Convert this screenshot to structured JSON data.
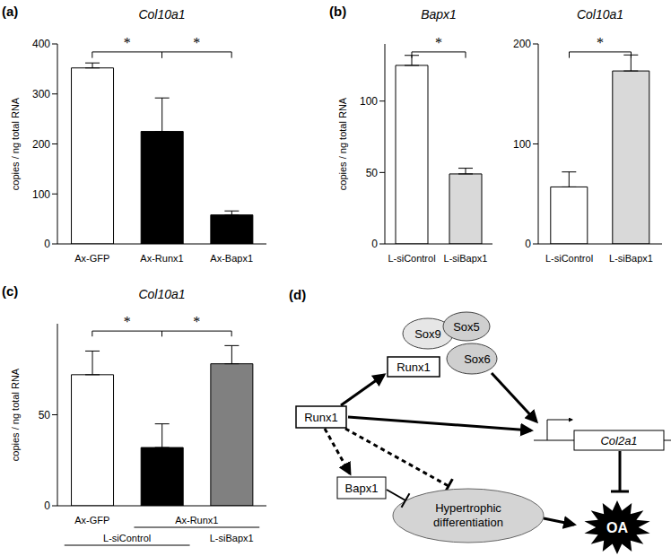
{
  "chart_data": [
    {
      "panel": "(a)",
      "type": "bar",
      "title": "Col10a1",
      "y_label": "copies / ng total RNA",
      "categories": [
        "Ax-GFP",
        "Ax-Runx1",
        "Ax-Bapx1"
      ],
      "values": [
        352,
        225,
        58
      ],
      "errors": [
        10,
        67,
        8
      ],
      "colors": [
        "#ffffff",
        "#000000",
        "#000000"
      ],
      "ylim": [
        0,
        400
      ],
      "yticks": [
        0,
        100,
        200,
        300,
        400
      ],
      "significance": [
        {
          "from": 0,
          "to": 1,
          "label": "*"
        },
        {
          "from": 1,
          "to": 2,
          "label": "*"
        }
      ]
    },
    {
      "panel": "(b)",
      "type": "bar",
      "title": "Bapx1",
      "y_label": "copies / ng total RNA",
      "categories": [
        "L-siControl",
        "L-siBapx1"
      ],
      "values": [
        125,
        49
      ],
      "errors": [
        7,
        4
      ],
      "colors": [
        "#ffffff",
        "#d9d9d9"
      ],
      "ylim": [
        0,
        140
      ],
      "yticks": [
        0,
        50,
        100
      ],
      "significance": [
        {
          "from": 0,
          "to": 1,
          "label": "*"
        }
      ]
    },
    {
      "type": "bar",
      "title": "Col10a1",
      "categories": [
        "L-siControl",
        "L-siBapx1"
      ],
      "values": [
        57,
        173
      ],
      "errors": [
        15,
        16
      ],
      "colors": [
        "#ffffff",
        "#d9d9d9"
      ],
      "ylim": [
        0,
        200
      ],
      "yticks": [
        0,
        100,
        200
      ],
      "significance": [
        {
          "from": 0,
          "to": 1,
          "label": "*"
        }
      ]
    },
    {
      "panel": "(c)",
      "type": "bar",
      "title": "Col10a1",
      "y_label": "copies / ng total RNA",
      "categories": [
        null,
        null,
        null
      ],
      "values": [
        72,
        32,
        78
      ],
      "errors": [
        13,
        13,
        10
      ],
      "x_groups": [
        [
          {
            "label": "Ax-GFP",
            "span": [
              0,
              0
            ]
          },
          {
            "label": "Ax-Runx1",
            "span": [
              1,
              2
            ]
          }
        ],
        [
          {
            "label": "L-siControl",
            "span": [
              0,
              1
            ]
          },
          {
            "label": "L-siBapx1",
            "span": [
              2,
              2
            ]
          }
        ]
      ],
      "colors": [
        "#ffffff",
        "#000000",
        "#808080"
      ],
      "ylim": [
        0,
        100
      ],
      "yticks": [
        0,
        50
      ],
      "significance": [
        {
          "from": 0,
          "to": 1,
          "label": "*"
        },
        {
          "from": 1,
          "to": 2,
          "label": "*"
        }
      ]
    }
  ],
  "diagram": {
    "panel": "(d)",
    "nodes": {
      "sox9": "Sox9",
      "sox5": "Sox5",
      "sox6": "Sox6",
      "runx1_complex": "Runx1",
      "runx1": "Runx1",
      "bapx1": "Bapx1",
      "col2a1": "Col2a1",
      "hypertrophic": "Hypertrophic differentiation",
      "oa": "OA"
    }
  }
}
